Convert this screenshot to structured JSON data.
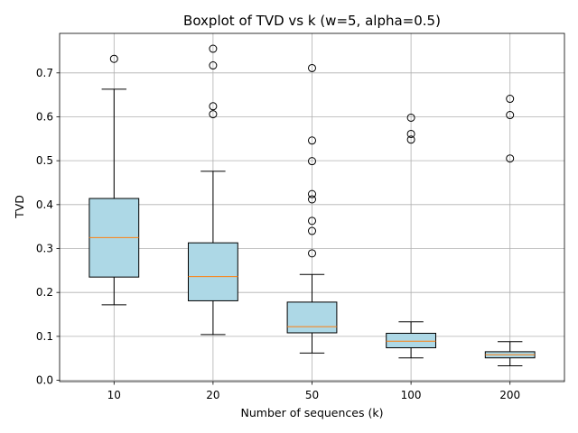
{
  "chart_data": {
    "type": "boxplot",
    "title": "Boxplot of TVD vs k (w=5, alpha=0.5)",
    "xlabel": "Number of sequences (k)",
    "ylabel": "TVD",
    "categories": [
      "10",
      "20",
      "50",
      "100",
      "200"
    ],
    "ylim": [
      -0.003,
      0.79
    ],
    "yticks": [
      0.0,
      0.1,
      0.2,
      0.3,
      0.4,
      0.5,
      0.6,
      0.7
    ],
    "grid": true,
    "boxes": [
      {
        "label": "10",
        "whisker_low": 0.172,
        "q1": 0.235,
        "median": 0.325,
        "q3": 0.414,
        "whisker_high": 0.663,
        "outliers": [
          0.732
        ]
      },
      {
        "label": "20",
        "whisker_low": 0.104,
        "q1": 0.181,
        "median": 0.236,
        "q3": 0.313,
        "whisker_high": 0.476,
        "outliers": [
          0.755,
          0.717,
          0.624,
          0.606
        ]
      },
      {
        "label": "50",
        "whisker_low": 0.062,
        "q1": 0.108,
        "median": 0.122,
        "q3": 0.178,
        "whisker_high": 0.241,
        "outliers": [
          0.711,
          0.546,
          0.499,
          0.424,
          0.412,
          0.363,
          0.34,
          0.289
        ]
      },
      {
        "label": "100",
        "whisker_low": 0.051,
        "q1": 0.074,
        "median": 0.089,
        "q3": 0.107,
        "whisker_high": 0.133,
        "outliers": [
          0.598,
          0.561,
          0.548
        ]
      },
      {
        "label": "200",
        "whisker_low": 0.033,
        "q1": 0.051,
        "median": 0.058,
        "q3": 0.065,
        "whisker_high": 0.088,
        "outliers": [
          0.641,
          0.604,
          0.505
        ]
      }
    ],
    "colors": {
      "box_fill": "#add8e6",
      "median": "#ff7f0e",
      "grid": "#b0b0b0"
    }
  }
}
